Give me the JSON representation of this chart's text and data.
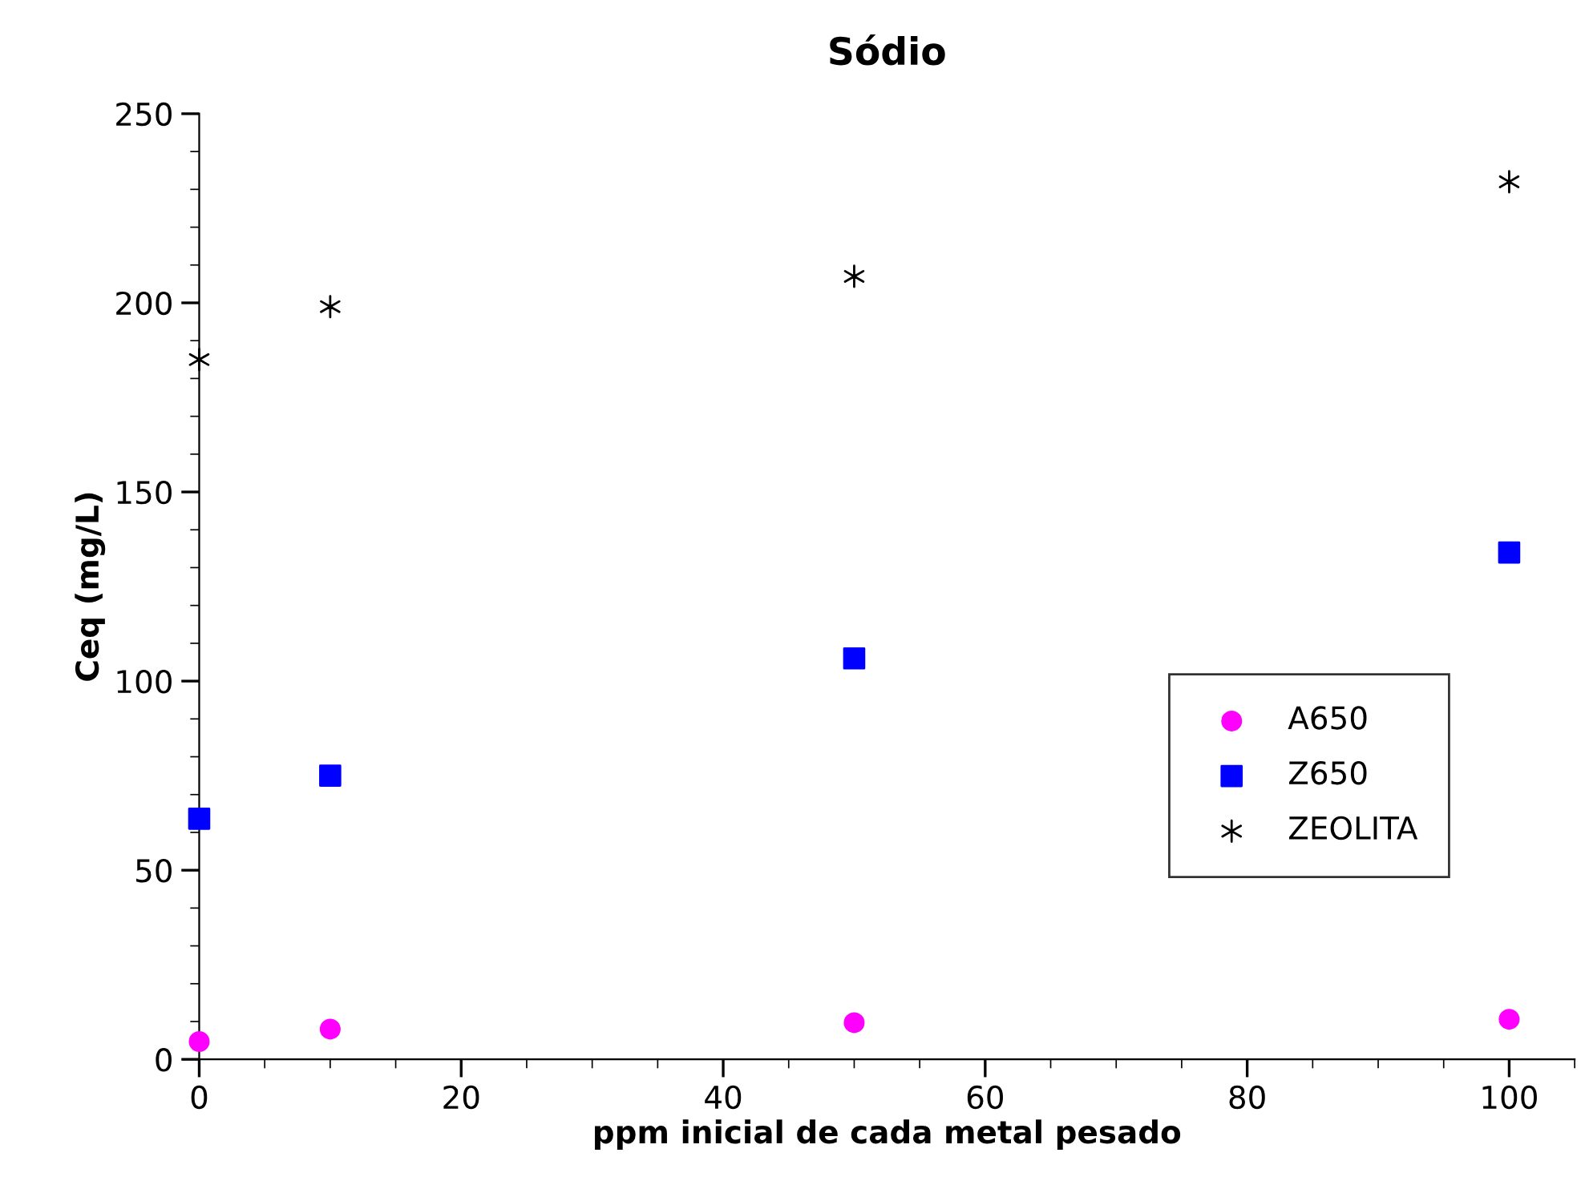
{
  "chart_data": {
    "type": "scatter",
    "title": "Sódio",
    "xlabel": "ppm inicial de cada metal pesado",
    "ylabel": "Ceq (mg/L)",
    "x": [
      0,
      10,
      50,
      100
    ],
    "series": [
      {
        "name": "A650",
        "color": "#ff00ff",
        "marker": "circle",
        "values": [
          4.7,
          8,
          9.7,
          10.6
        ]
      },
      {
        "name": "Z650",
        "color": "#0000ff",
        "marker": "square",
        "values": [
          63.6,
          75,
          106,
          134
        ]
      },
      {
        "name": "ZEOLITA",
        "color": "#000000",
        "marker": "cross",
        "values": [
          185,
          199,
          207,
          232
        ]
      }
    ],
    "xlim": [
      0,
      105
    ],
    "xticks": [
      0,
      20,
      40,
      60,
      80,
      100
    ],
    "ylim": [
      0,
      250
    ],
    "yticks": [
      0,
      50,
      100,
      150,
      200,
      250
    ],
    "grid": false,
    "legend": "right"
  }
}
